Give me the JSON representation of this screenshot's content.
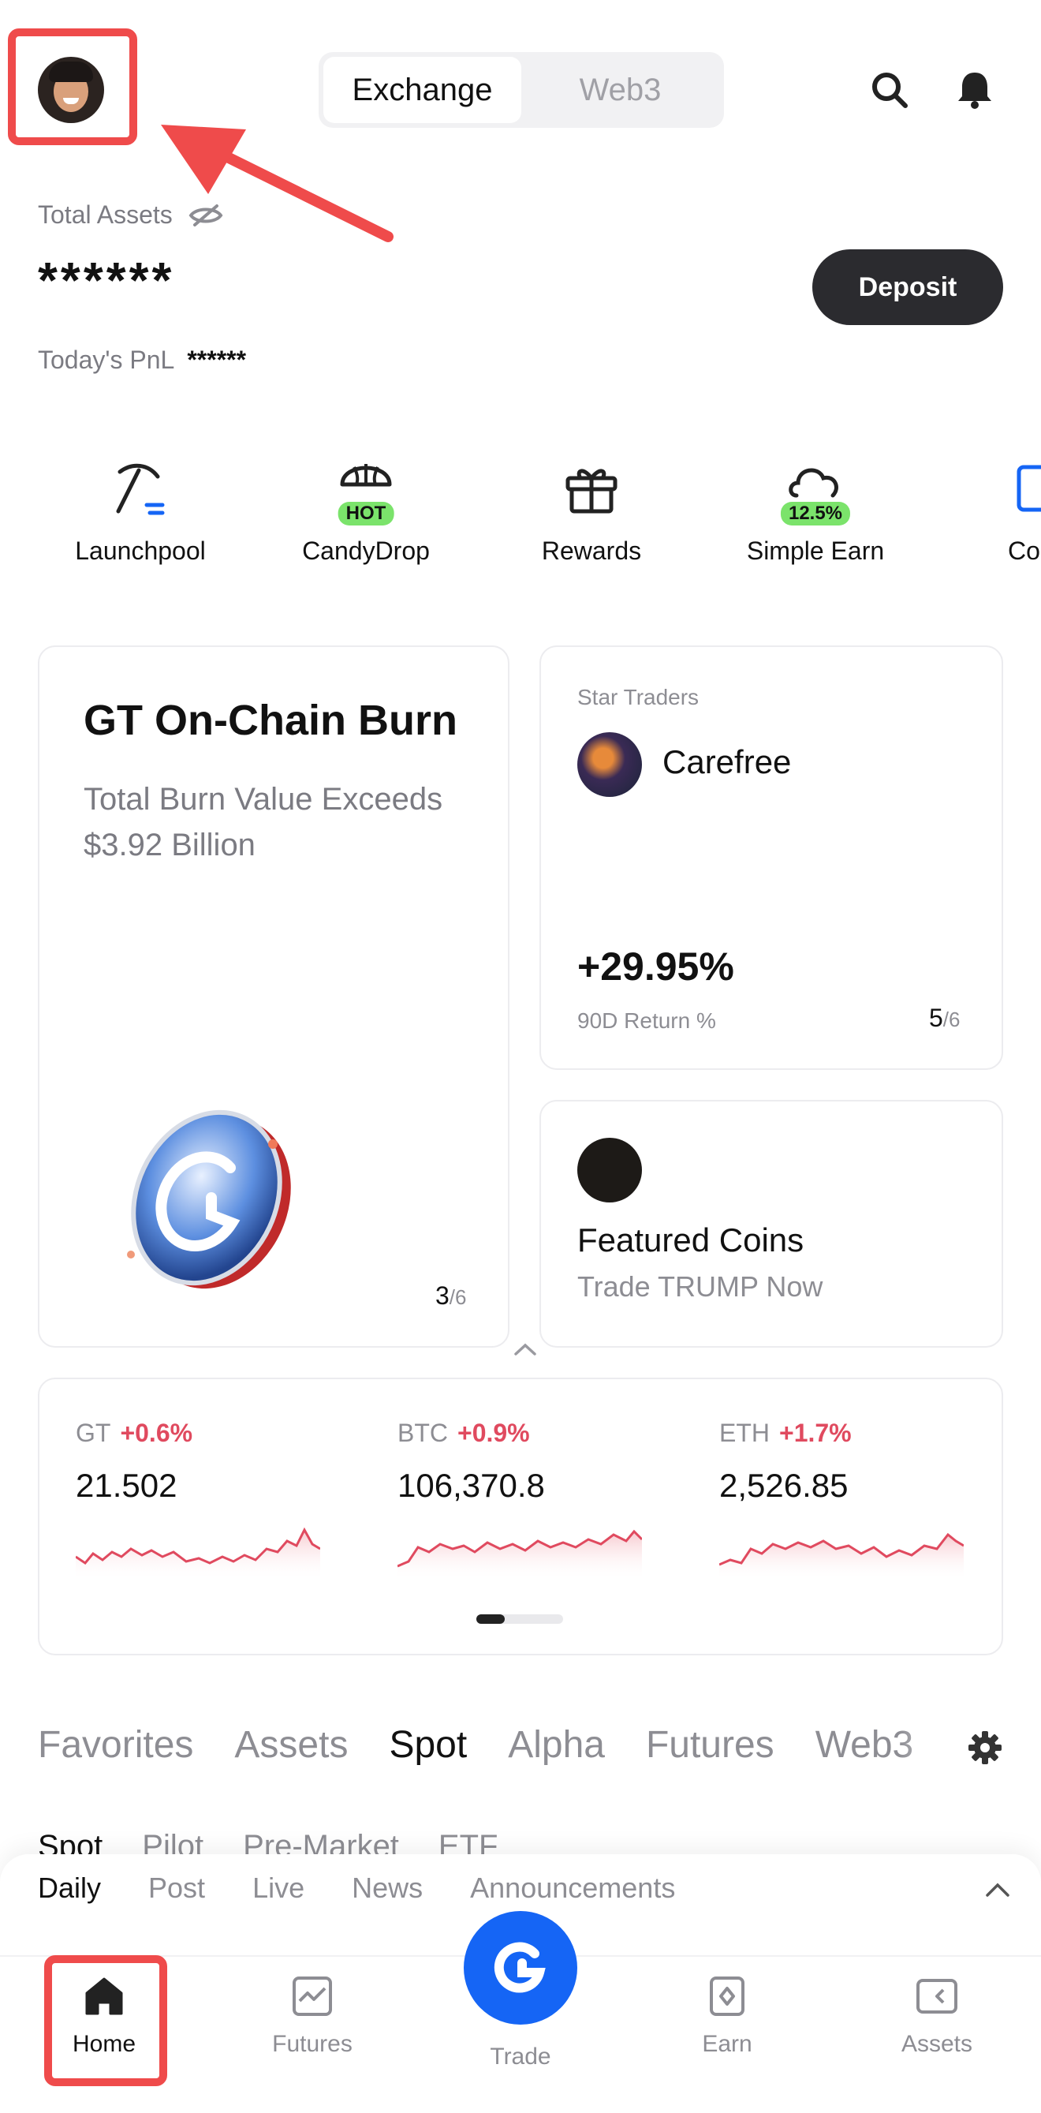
{
  "header": {
    "tabs": [
      {
        "label": "Exchange",
        "active": true
      },
      {
        "label": "Web3",
        "active": false
      }
    ]
  },
  "assets": {
    "label": "Total Assets",
    "value": "******",
    "pnl_label": "Today's PnL",
    "pnl_value": "******",
    "deposit_label": "Deposit"
  },
  "quick_actions": [
    {
      "label": "Launchpool",
      "icon": "pickaxe-icon"
    },
    {
      "label": "CandyDrop",
      "icon": "parachute-icon",
      "badge": "HOT"
    },
    {
      "label": "Rewards",
      "icon": "gift-icon"
    },
    {
      "label": "Simple Earn",
      "icon": "cloud-icon",
      "badge": "12.5%"
    },
    {
      "label": "Co",
      "icon": "copy-icon"
    }
  ],
  "burn_card": {
    "title": "GT On-Chain Burn",
    "subtitle": "Total Burn Value Exceeds $3.92 Billion",
    "page": "3",
    "total": "/6"
  },
  "star_card": {
    "label": "Star Traders",
    "name": "Carefree",
    "return": "+29.95%",
    "return_label": "90D Return %",
    "page": "5",
    "total": "/6"
  },
  "featured_card": {
    "title": "Featured Coins",
    "subtitle": "Trade TRUMP Now"
  },
  "tickers": [
    {
      "symbol": "GT",
      "change": "+0.6%",
      "price": "21.502"
    },
    {
      "symbol": "BTC",
      "change": "+0.9%",
      "price": "106,370.8"
    },
    {
      "symbol": "ETH",
      "change": "+1.7%",
      "price": "2,526.85"
    }
  ],
  "market_tabs": [
    "Favorites",
    "Assets",
    "Spot",
    "Alpha",
    "Futures",
    "Web3"
  ],
  "sub_tabs": [
    "Spot",
    "Pilot",
    "Pre-Market",
    "ETF"
  ],
  "feed_tabs": [
    "Daily",
    "Post",
    "Live",
    "News",
    "Announcements"
  ],
  "bottom_nav": [
    {
      "label": "Home",
      "icon": "home-icon"
    },
    {
      "label": "Futures",
      "icon": "futures-icon"
    },
    {
      "label": "Trade",
      "icon": "trade-icon"
    },
    {
      "label": "Earn",
      "icon": "earn-icon"
    },
    {
      "label": "Assets",
      "icon": "wallet-icon"
    }
  ],
  "colors": {
    "accent": "#1565f5",
    "up": "#e04a5f",
    "highlight": "#ef4b4b",
    "badge": "#7be36b"
  }
}
